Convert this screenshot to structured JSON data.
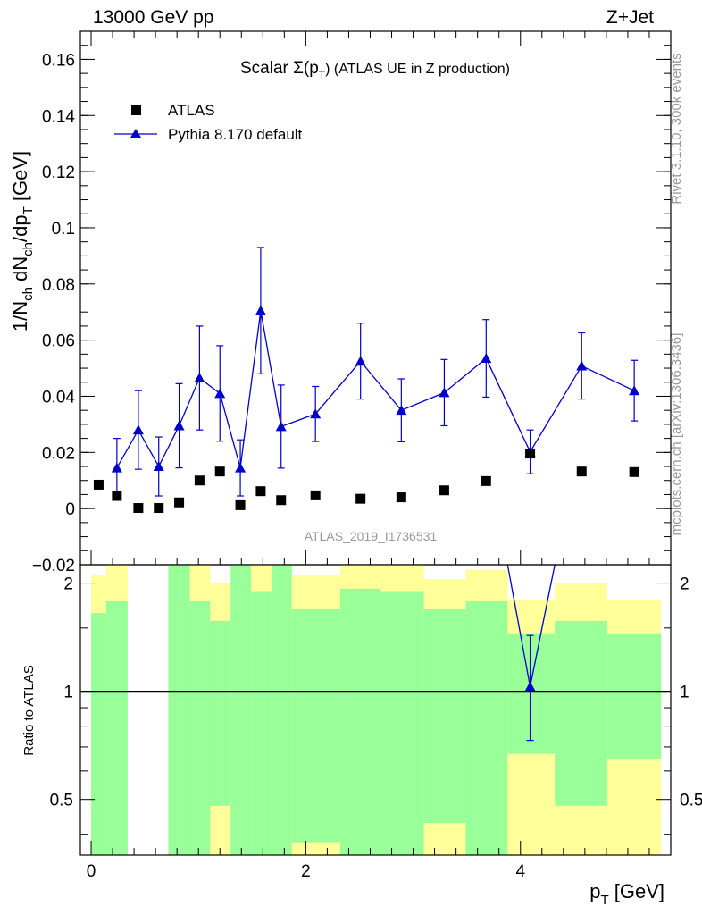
{
  "header": {
    "left": "13000 GeV pp",
    "right": "Z+Jet"
  },
  "side_labels": {
    "rivet": "Rivet 3.1.10,  300k events",
    "mcplots": "mcplots.cern.ch [arXiv:1306.3436]"
  },
  "chart_data": [
    {
      "type": "scatter",
      "title_main": "Scalar Σ(p",
      "title_sub": "T",
      "title_rest": ") (ATLAS UE in Z production)",
      "analysis_id": "ATLAS_2019_I1736531",
      "ylabel": "1/N_ch dN_ch/dp_T [GeV]",
      "ylim": [
        -0.02,
        0.17
      ],
      "xlim": [
        -0.1,
        5.4
      ],
      "yticks": [
        "−0.02",
        "0",
        "0.02",
        "0.04",
        "0.06",
        "0.08",
        "0.1",
        "0.12",
        "0.14",
        "0.16"
      ],
      "ytick_values": [
        -0.02,
        0,
        0.02,
        0.04,
        0.06,
        0.08,
        0.1,
        0.12,
        0.14,
        0.16
      ],
      "legend": [
        {
          "name": "ATLAS",
          "marker": "square",
          "color": "#000000"
        },
        {
          "name": "Pythia 8.170 default",
          "marker": "triangle",
          "color": "#0000cc"
        }
      ],
      "series": [
        {
          "name": "ATLAS",
          "x": [
            0.07,
            0.24,
            0.44,
            0.63,
            0.82,
            1.01,
            1.2,
            1.39,
            1.58,
            1.77,
            2.09,
            2.51,
            2.89,
            3.29,
            3.68,
            4.09,
            4.57,
            5.06
          ],
          "y": [
            0.0085,
            0.0045,
            0.0002,
            0.0002,
            0.0022,
            0.01,
            0.0132,
            0.0012,
            0.0062,
            0.003,
            0.0047,
            0.0035,
            0.004,
            0.0065,
            0.0098,
            0.0196,
            0.0132,
            0.013
          ]
        },
        {
          "name": "Pythia 8.170 default",
          "x": [
            0.24,
            0.44,
            0.63,
            0.82,
            1.01,
            1.2,
            1.39,
            1.58,
            1.77,
            2.09,
            2.51,
            2.89,
            3.29,
            3.68,
            4.09,
            4.57,
            5.06
          ],
          "y": [
            0.0145,
            0.028,
            0.015,
            0.0295,
            0.0465,
            0.041,
            0.0145,
            0.0705,
            0.0292,
            0.0337,
            0.0525,
            0.035,
            0.0413,
            0.0535,
            0.0202,
            0.0508,
            0.042
          ],
          "err": [
            0.0105,
            0.014,
            0.0105,
            0.015,
            0.0185,
            0.017,
            0.01,
            0.0225,
            0.0148,
            0.0098,
            0.0135,
            0.0112,
            0.0118,
            0.0138,
            0.0078,
            0.0118,
            0.0108
          ]
        }
      ]
    },
    {
      "type": "ratio",
      "ylabel": "Ratio to ATLAS",
      "xlabel": "p_T [GeV]",
      "xlim": [
        -0.1,
        5.4
      ],
      "ylim": [
        0.35,
        2.25
      ],
      "xticks": [
        "0",
        "2",
        "4"
      ],
      "xtick_values": [
        0,
        2,
        4
      ],
      "yticks": [
        "0.5",
        "1",
        "2"
      ],
      "ytick_values": [
        0.5,
        1,
        2
      ],
      "bands": [
        {
          "x0": 0.0,
          "x1": 0.14,
          "g_lo": 0.35,
          "g_hi": 1.65,
          "y_lo": 0.35,
          "y_hi": 2.1
        },
        {
          "x0": 0.14,
          "x1": 0.34,
          "g_lo": 0.35,
          "g_hi": 1.78,
          "y_lo": 0.35,
          "y_hi": 2.25
        },
        {
          "x0": 0.72,
          "x1": 0.92,
          "g_lo": 0.35,
          "g_hi": 2.25,
          "y_lo": 0.35,
          "y_hi": 2.25
        },
        {
          "x0": 0.92,
          "x1": 1.11,
          "g_lo": 0.35,
          "g_hi": 1.78,
          "y_lo": 0.35,
          "y_hi": 2.25
        },
        {
          "x0": 1.11,
          "x1": 1.3,
          "g_lo": 0.48,
          "g_hi": 1.57,
          "y_lo": 0.35,
          "y_hi": 2.0
        },
        {
          "x0": 1.3,
          "x1": 1.49,
          "g_lo": 0.35,
          "g_hi": 2.25,
          "y_lo": 0.35,
          "y_hi": 2.25
        },
        {
          "x0": 1.49,
          "x1": 1.68,
          "g_lo": 0.35,
          "g_hi": 1.9,
          "y_lo": 0.35,
          "y_hi": 2.25
        },
        {
          "x0": 1.68,
          "x1": 1.87,
          "g_lo": 0.35,
          "g_hi": 2.25,
          "y_lo": 0.35,
          "y_hi": 2.25
        },
        {
          "x0": 1.87,
          "x1": 2.32,
          "g_lo": 0.38,
          "g_hi": 1.7,
          "y_lo": 0.35,
          "y_hi": 2.1
        },
        {
          "x0": 2.32,
          "x1": 2.7,
          "g_lo": 0.35,
          "g_hi": 1.93,
          "y_lo": 0.35,
          "y_hi": 2.25
        },
        {
          "x0": 2.7,
          "x1": 3.1,
          "g_lo": 0.35,
          "g_hi": 1.9,
          "y_lo": 0.35,
          "y_hi": 2.25
        },
        {
          "x0": 3.1,
          "x1": 3.49,
          "g_lo": 0.43,
          "g_hi": 1.7,
          "y_lo": 0.35,
          "y_hi": 2.05
        },
        {
          "x0": 3.49,
          "x1": 3.88,
          "g_lo": 0.35,
          "g_hi": 1.78,
          "y_lo": 0.35,
          "y_hi": 2.18
        },
        {
          "x0": 3.88,
          "x1": 4.32,
          "g_lo": 0.67,
          "g_hi": 1.45,
          "y_lo": 0.35,
          "y_hi": 1.8
        },
        {
          "x0": 4.32,
          "x1": 4.81,
          "g_lo": 0.48,
          "g_hi": 1.57,
          "y_lo": 0.35,
          "y_hi": 2.0
        },
        {
          "x0": 4.81,
          "x1": 5.31,
          "g_lo": 0.65,
          "g_hi": 1.45,
          "y_lo": 0.35,
          "y_hi": 1.8
        }
      ],
      "reference_line": 1,
      "ratio_series": {
        "name": "Pythia 8.170 default",
        "x": [
          3.88,
          4.09,
          4.32
        ],
        "y": [
          2.25,
          1.03,
          2.25
        ],
        "center_err": 0.4
      }
    }
  ]
}
